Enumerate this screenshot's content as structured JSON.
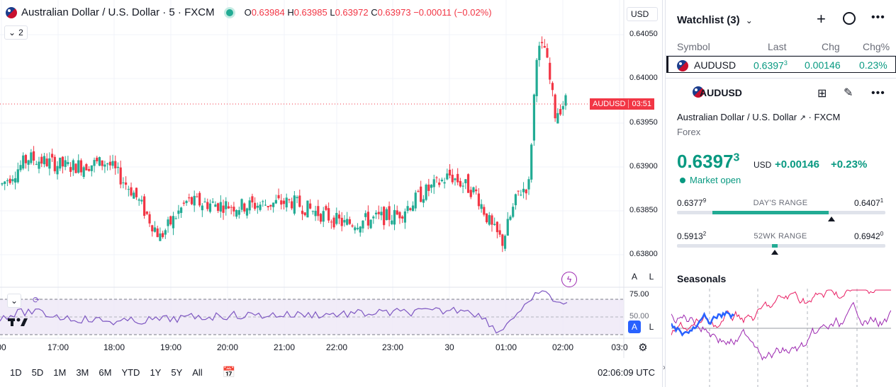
{
  "chart": {
    "symbol_title": "Australian Dollar / U.S. Dollar · 5 · FXCM",
    "ohlc": {
      "o_label": "O",
      "o": "0.63984",
      "h_label": "H",
      "h": "0.63985",
      "l_label": "L",
      "l": "0.63972",
      "c_label": "C",
      "c": "0.63973",
      "change": "−0.00011 (−0.02%)"
    },
    "indicator_count": "2",
    "currency": "USD",
    "price_tag": {
      "symbol": "AUDUSD",
      "countdown": "03:51"
    },
    "y_axis": [
      "0.64050",
      "0.64000",
      "0.63950",
      "0.63900",
      "0.63850",
      "0.63800"
    ],
    "x_axis": [
      "00",
      "17:00",
      "18:00",
      "19:00",
      "20:00",
      "21:00",
      "22:00",
      "23:00",
      "30",
      "01:00",
      "02:00",
      "03:0"
    ],
    "rsi_levels": {
      "upper": "75.00",
      "mid": "50.00"
    },
    "auto_label": "A",
    "log_label": "L",
    "colors": {
      "up": "#22ab94",
      "down": "#f23645",
      "rsi": "#7e57c2"
    }
  },
  "bottom_bar": {
    "timeframes": [
      "1D",
      "5D",
      "1M",
      "3M",
      "6M",
      "YTD",
      "1Y",
      "5Y",
      "All"
    ],
    "clock": "02:06:09 UTC"
  },
  "watchlist": {
    "title": "Watchlist (3)",
    "headers": {
      "symbol": "Symbol",
      "last": "Last",
      "chg": "Chg",
      "chg_pct": "Chg%"
    },
    "rows": [
      {
        "symbol": "AUDUSD",
        "last": "0.6397",
        "last_sup": "3",
        "chg": "0.00146",
        "chg_pct": "0.23%"
      }
    ]
  },
  "details": {
    "symbol": "AUDUSD",
    "name": "Australian Dollar / U.S. Dollar",
    "exchange": "FXCM",
    "category": "Forex",
    "price": "0.6397",
    "price_sup": "3",
    "currency": "USD",
    "change": "+0.00146",
    "change_pct": "+0.23%",
    "market_status": "Market open",
    "days_range": {
      "label": "DAY'S RANGE",
      "low": "0.6377",
      "low_sup": "9",
      "high": "0.6407",
      "high_sup": "1",
      "position": 0.74
    },
    "wk52_range": {
      "label": "52WK RANGE",
      "low": "0.5913",
      "low_sup": "2",
      "high": "0.6942",
      "high_sup": "0",
      "position": 0.47
    },
    "seasonals_title": "Seasonals"
  }
}
